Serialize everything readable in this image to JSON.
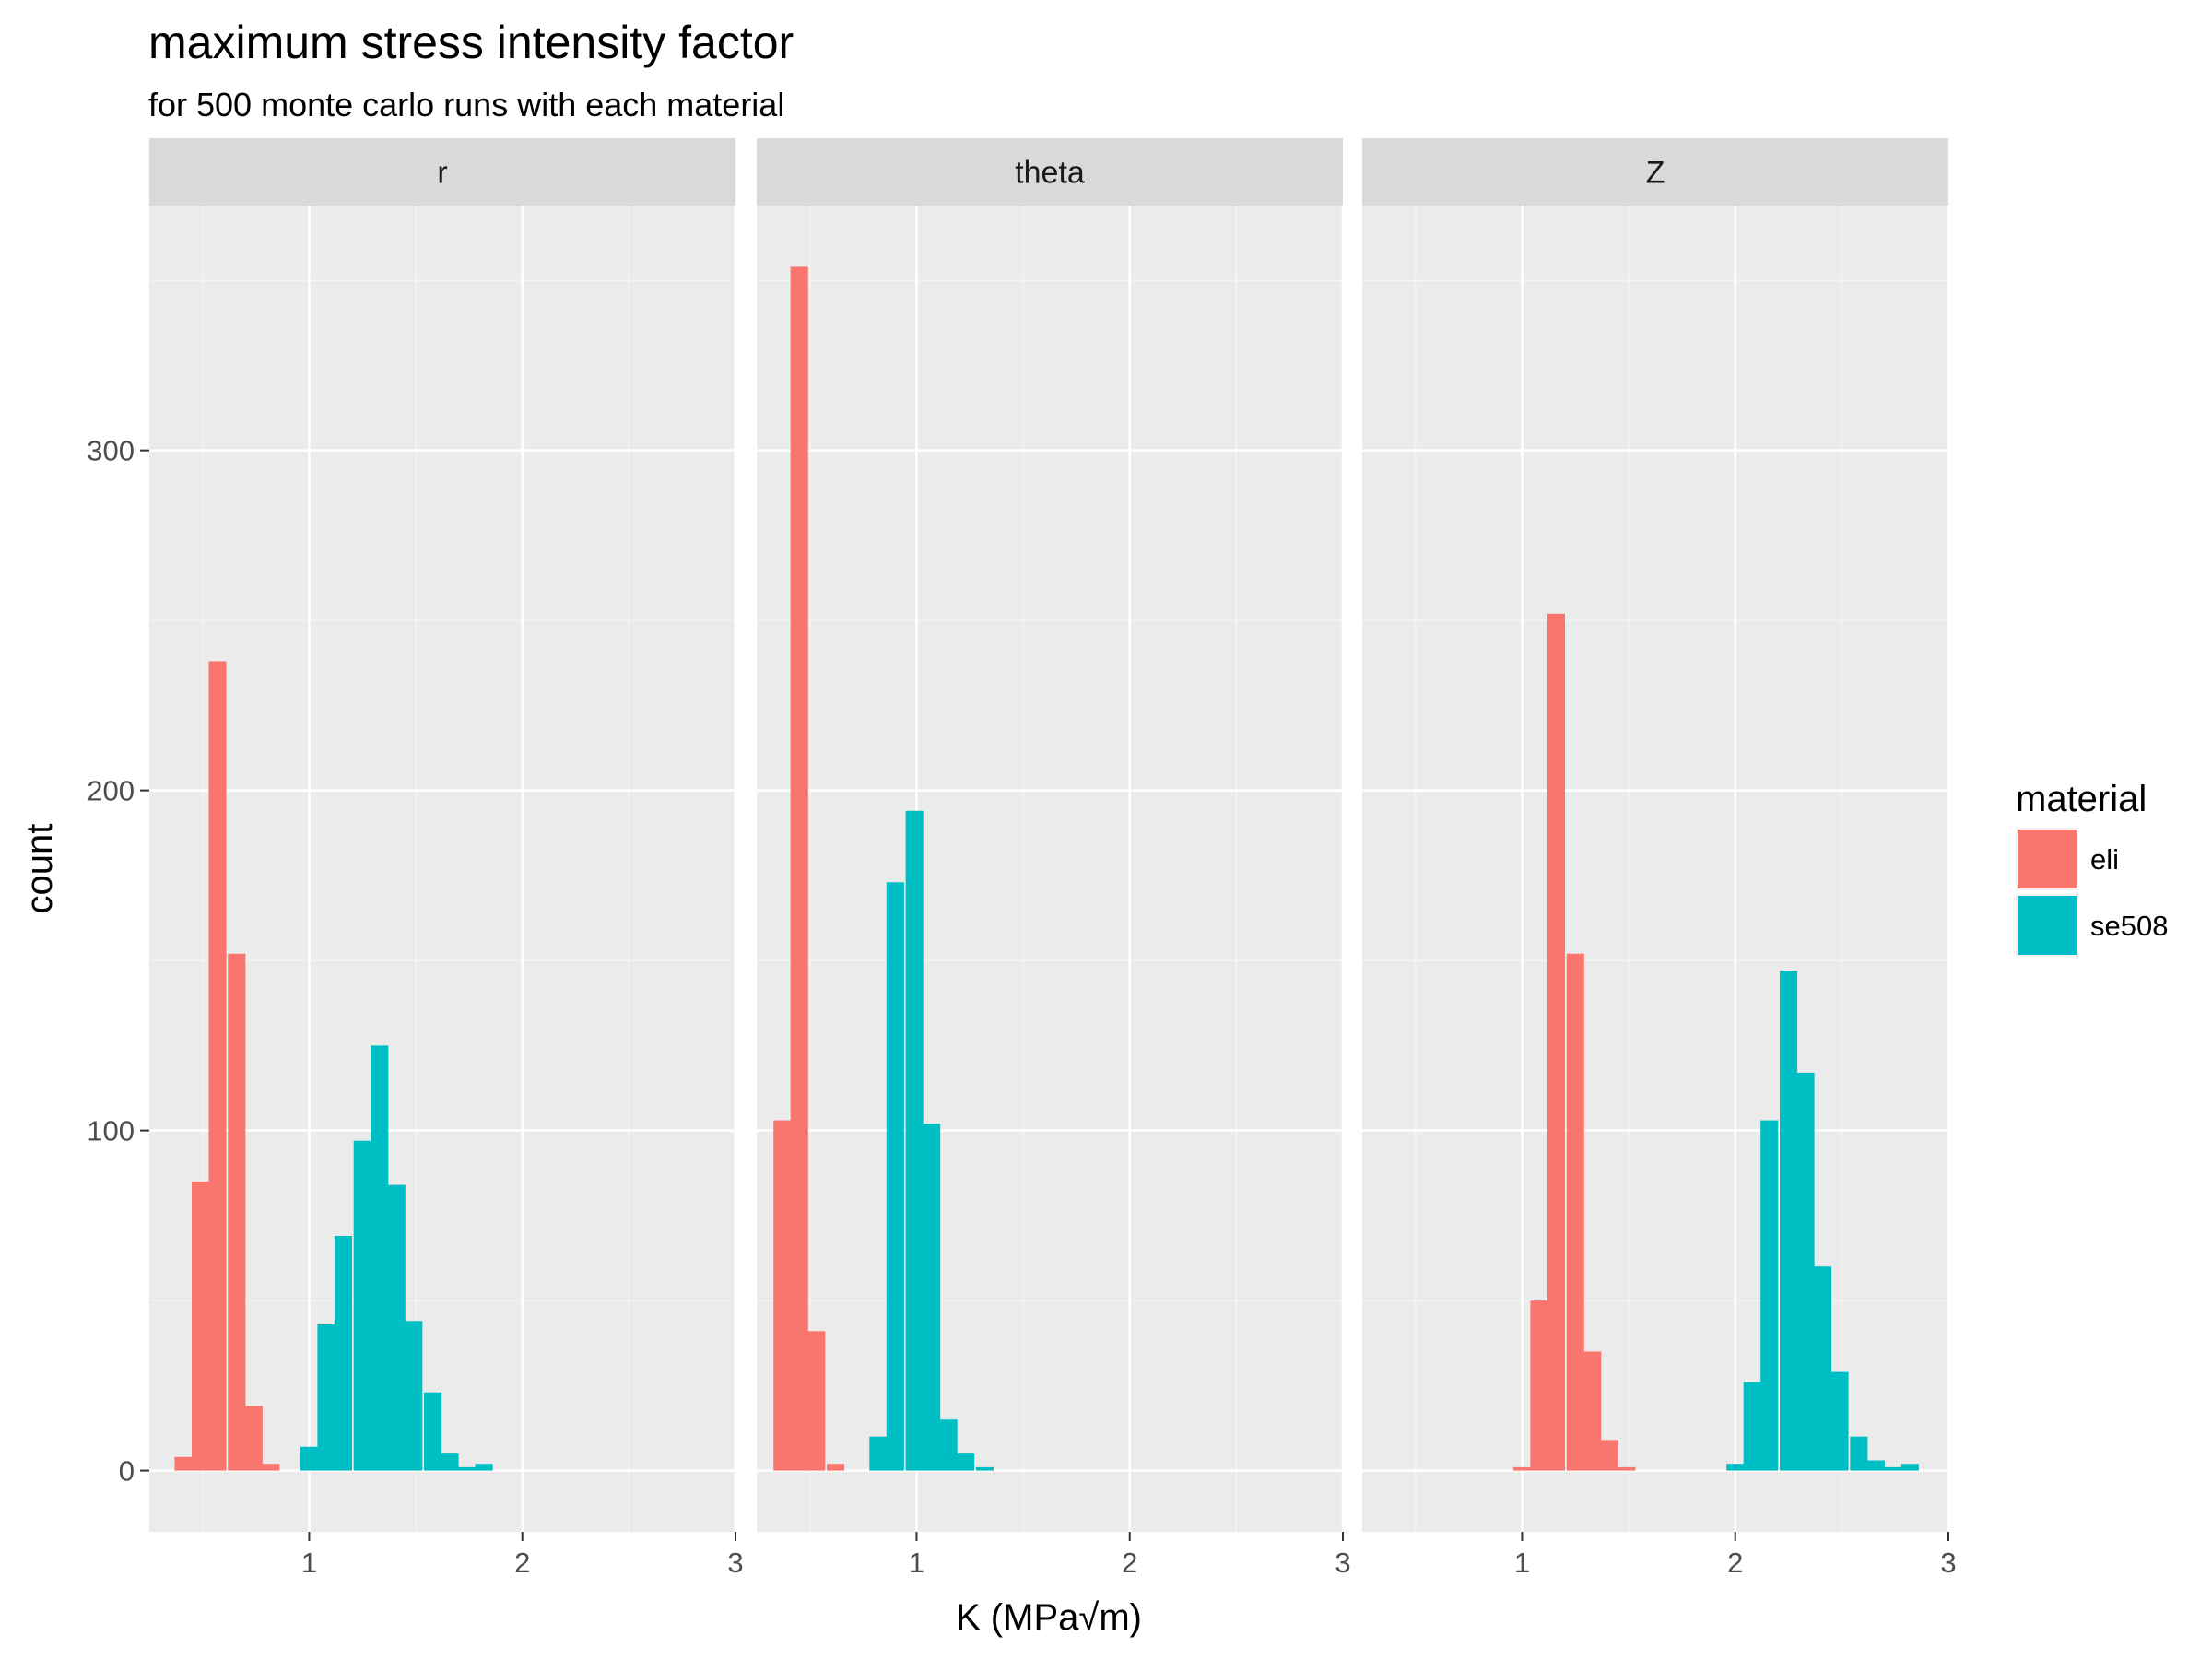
{
  "chart_data": {
    "type": "bar",
    "title": "maximum stress intensity factor",
    "subtitle": "for 500 monte carlo runs with each material",
    "xlabel": "K (MPa√m)",
    "ylabel": "count",
    "xlim": [
      0.25,
      3.0
    ],
    "ylim": [
      -18,
      372
    ],
    "x_ticks": [
      1,
      2,
      3
    ],
    "y_ticks": [
      0,
      100,
      200,
      300
    ],
    "bin_width": 0.0826,
    "grid": true,
    "legend": {
      "title": "material",
      "position": "right",
      "entries": [
        {
          "name": "eli",
          "color": "#F8766D"
        },
        {
          "name": "se508",
          "color": "#00BFC4"
        }
      ]
    },
    "facets": [
      {
        "label": "r",
        "series": [
          {
            "name": "eli",
            "bins": [
              {
                "x": 0.41,
                "count": 4
              },
              {
                "x": 0.49,
                "count": 85
              },
              {
                "x": 0.57,
                "count": 238
              },
              {
                "x": 0.66,
                "count": 152
              },
              {
                "x": 0.74,
                "count": 19
              },
              {
                "x": 0.82,
                "count": 2
              }
            ]
          },
          {
            "name": "se508",
            "bins": [
              {
                "x": 1.0,
                "count": 7
              },
              {
                "x": 1.08,
                "count": 43
              },
              {
                "x": 1.16,
                "count": 69
              },
              {
                "x": 1.25,
                "count": 97
              },
              {
                "x": 1.33,
                "count": 125
              },
              {
                "x": 1.41,
                "count": 84
              },
              {
                "x": 1.49,
                "count": 44
              },
              {
                "x": 1.58,
                "count": 23
              },
              {
                "x": 1.66,
                "count": 5
              },
              {
                "x": 1.74,
                "count": 1
              },
              {
                "x": 1.82,
                "count": 2
              }
            ]
          }
        ]
      },
      {
        "label": "theta",
        "series": [
          {
            "name": "eli",
            "bins": [
              {
                "x": 0.37,
                "count": 103
              },
              {
                "x": 0.45,
                "count": 354
              },
              {
                "x": 0.53,
                "count": 41
              },
              {
                "x": 0.62,
                "count": 2
              }
            ]
          },
          {
            "name": "se508",
            "bins": [
              {
                "x": 0.82,
                "count": 10
              },
              {
                "x": 0.9,
                "count": 173
              },
              {
                "x": 0.99,
                "count": 194
              },
              {
                "x": 1.07,
                "count": 102
              },
              {
                "x": 1.15,
                "count": 15
              },
              {
                "x": 1.23,
                "count": 5
              },
              {
                "x": 1.32,
                "count": 1
              }
            ]
          }
        ]
      },
      {
        "label": "Z",
        "series": [
          {
            "name": "eli",
            "bins": [
              {
                "x": 1.0,
                "count": 1
              },
              {
                "x": 1.08,
                "count": 50
              },
              {
                "x": 1.16,
                "count": 252
              },
              {
                "x": 1.25,
                "count": 152
              },
              {
                "x": 1.33,
                "count": 35
              },
              {
                "x": 1.41,
                "count": 9
              },
              {
                "x": 1.49,
                "count": 1
              }
            ]
          },
          {
            "name": "se508",
            "bins": [
              {
                "x": 2.0,
                "count": 2
              },
              {
                "x": 2.08,
                "count": 26
              },
              {
                "x": 2.16,
                "count": 103
              },
              {
                "x": 2.25,
                "count": 147
              },
              {
                "x": 2.33,
                "count": 117
              },
              {
                "x": 2.41,
                "count": 60
              },
              {
                "x": 2.49,
                "count": 29
              },
              {
                "x": 2.58,
                "count": 10
              },
              {
                "x": 2.66,
                "count": 3
              },
              {
                "x": 2.74,
                "count": 1
              },
              {
                "x": 2.82,
                "count": 2
              }
            ]
          }
        ]
      }
    ]
  }
}
